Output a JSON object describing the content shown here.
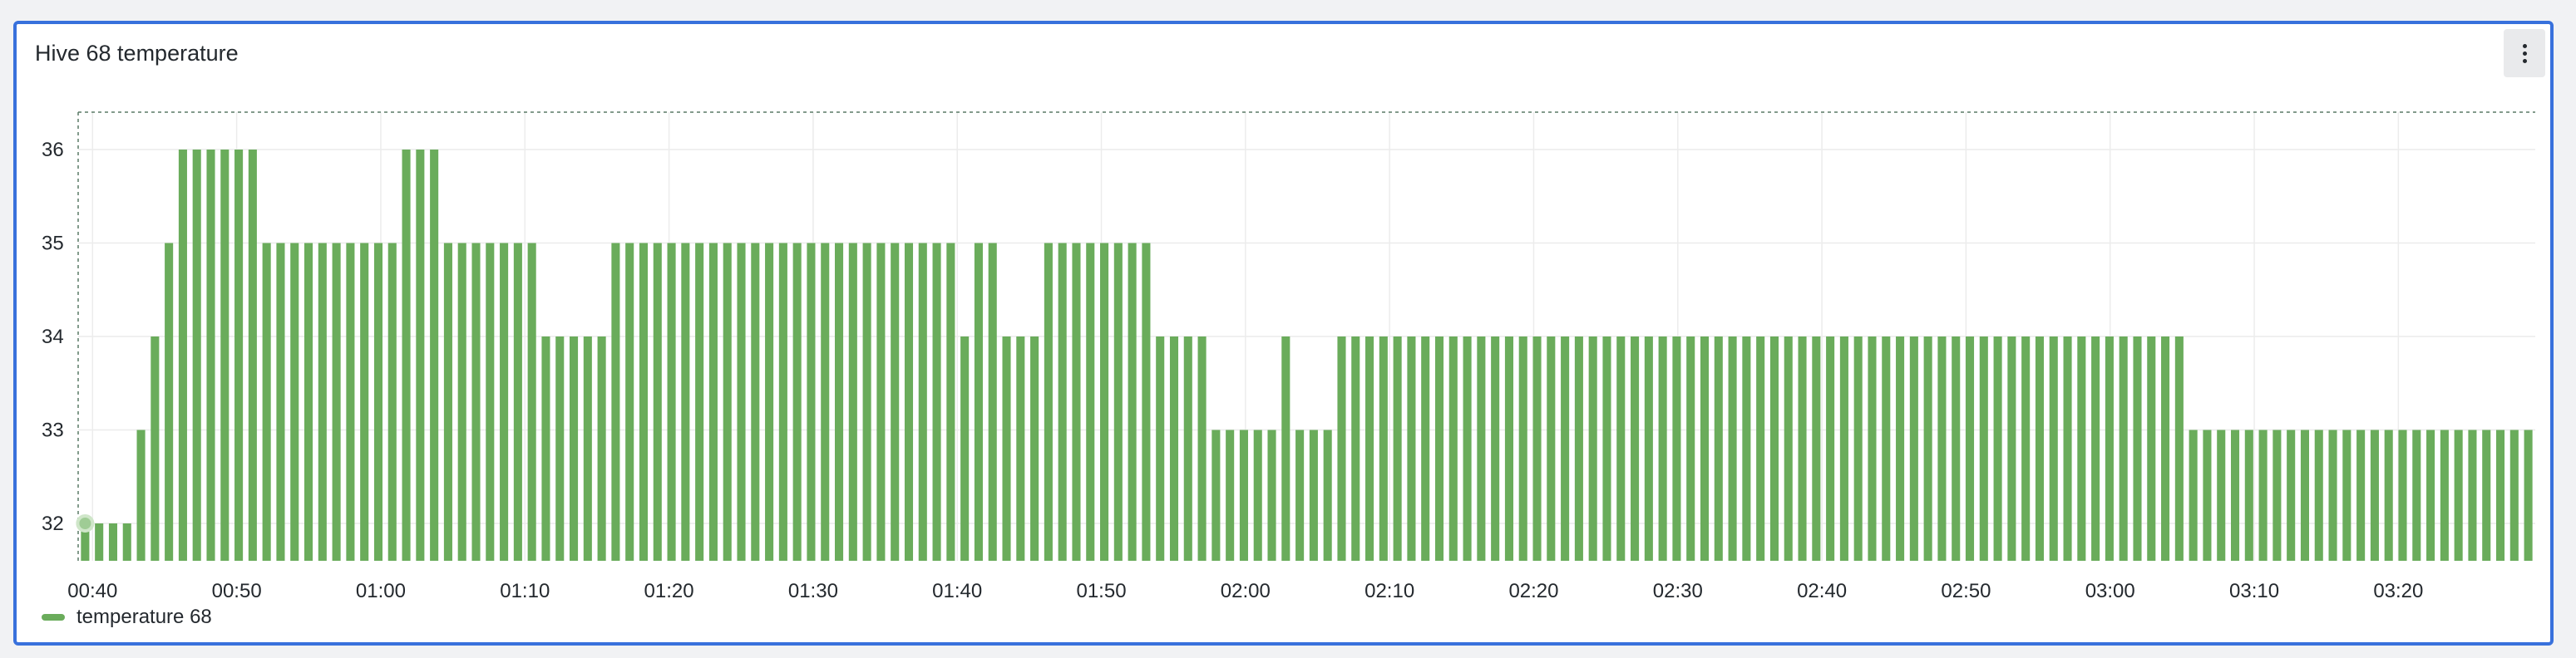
{
  "panel": {
    "title": "Hive 68 temperature",
    "menu_icon": "kebab-menu-icon"
  },
  "colors": {
    "bar": "#6aac5b",
    "panel_border": "#3871dc",
    "grid": "#ececec"
  },
  "chart_data": {
    "type": "bar",
    "title": "Hive 68 temperature",
    "xlabel": "",
    "ylabel": "",
    "ylim": [
      31.6,
      36.4
    ],
    "y_ticks": [
      32,
      33,
      34,
      35,
      36
    ],
    "x_tick_labels": [
      "00:40",
      "00:50",
      "01:00",
      "01:10",
      "01:20",
      "01:30",
      "01:40",
      "01:50",
      "02:00",
      "02:10",
      "02:20",
      "02:30",
      "02:40",
      "02:50",
      "03:00",
      "03:10",
      "03:20"
    ],
    "x_start": "00:39:00",
    "x_end": "03:29:30",
    "interval_seconds": 60,
    "grid": true,
    "legend_position": "bottom-left",
    "series": [
      {
        "name": "temperature 68",
        "values": [
          32,
          32,
          32,
          32,
          33,
          34,
          35,
          36,
          36,
          36,
          36,
          36,
          36,
          35,
          35,
          35,
          35,
          35,
          35,
          35,
          35,
          35,
          35,
          36,
          36,
          36,
          35,
          35,
          35,
          35,
          35,
          35,
          35,
          34,
          34,
          34,
          34,
          34,
          35,
          35,
          35,
          35,
          35,
          35,
          35,
          35,
          35,
          35,
          35,
          35,
          35,
          35,
          35,
          35,
          35,
          35,
          35,
          35,
          35,
          35,
          35,
          35,
          35,
          34,
          35,
          35,
          34,
          34,
          34,
          35,
          35,
          35,
          35,
          35,
          35,
          35,
          35,
          34,
          34,
          34,
          34,
          33,
          33,
          33,
          33,
          33,
          34,
          33,
          33,
          33,
          34,
          34,
          34,
          34,
          34,
          34,
          34,
          34,
          34,
          34,
          34,
          34,
          34,
          34,
          34,
          34,
          34,
          34,
          34,
          34,
          34,
          34,
          34,
          34,
          34,
          34,
          34,
          34,
          34,
          34,
          34,
          34,
          34,
          34,
          34,
          34,
          34,
          34,
          34,
          34,
          34,
          34,
          34,
          34,
          34,
          34,
          34,
          34,
          34,
          34,
          34,
          34,
          34,
          34,
          34,
          34,
          34,
          34,
          34,
          34,
          34,
          33,
          33,
          33,
          33,
          33,
          33,
          33,
          33,
          33,
          33,
          33,
          33,
          33,
          33,
          33,
          33,
          33,
          33,
          33,
          33,
          33,
          33,
          33,
          33,
          33
        ]
      }
    ]
  }
}
